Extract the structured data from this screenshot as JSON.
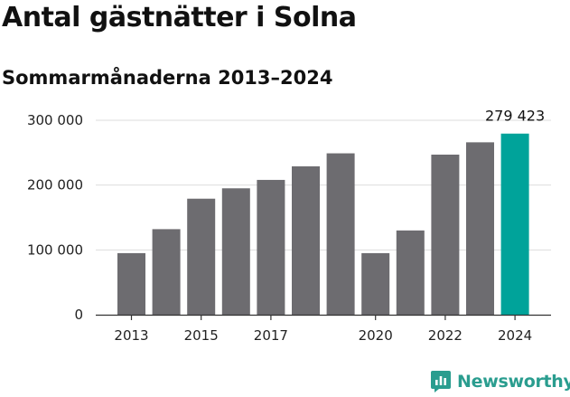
{
  "title": "Antal gästnätter i Solna",
  "subtitle": "Sommarmånaderna 2013–2024",
  "brand": {
    "name": "Newsworthy",
    "icon": "bar-chart-logo-icon",
    "color": "#2a9d8f"
  },
  "colors": {
    "bar": "#6d6c70",
    "highlight": "#00a39a",
    "grid": "#dddddd",
    "axis": "#333333"
  },
  "chart_data": {
    "type": "bar",
    "categories": [
      "2013",
      "2014",
      "2015",
      "2016",
      "2017",
      "2018",
      "2019",
      "2020",
      "2021",
      "2022",
      "2023",
      "2024"
    ],
    "values": [
      95000,
      132000,
      179000,
      195000,
      208000,
      229000,
      249000,
      95000,
      130000,
      247000,
      266000,
      279423
    ],
    "highlight_index": 11,
    "data_labels": [
      {
        "index": 11,
        "text": "279 423"
      }
    ],
    "yticks": [
      0,
      100000,
      200000,
      300000
    ],
    "ytick_labels": [
      "0",
      "100 000",
      "200 000",
      "300 000"
    ],
    "xtick_labels": [
      {
        "index": 0,
        "text": "2013"
      },
      {
        "index": 2,
        "text": "2015"
      },
      {
        "index": 4,
        "text": "2017"
      },
      {
        "index": 7,
        "text": "2020"
      },
      {
        "index": 9,
        "text": "2022"
      },
      {
        "index": 11,
        "text": "2024"
      }
    ],
    "ylim": [
      0,
      300000
    ],
    "grid": true,
    "xlabel": "",
    "ylabel": ""
  }
}
